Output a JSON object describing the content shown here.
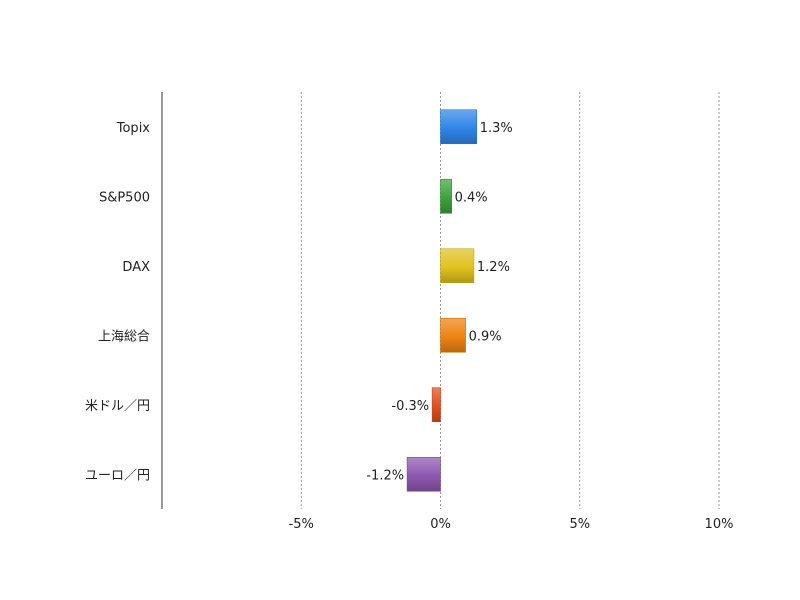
{
  "chart_data": {
    "type": "bar",
    "orientation": "horizontal",
    "categories": [
      "Topix",
      "S&P500",
      "DAX",
      "上海総合",
      "米ドル／円",
      "ユーロ／円"
    ],
    "values": [
      1.3,
      0.4,
      1.2,
      0.9,
      -0.3,
      -1.2
    ],
    "data_labels": [
      "1.3%",
      "0.4%",
      "1.2%",
      "0.9%",
      "-0.3%",
      "-1.2%"
    ],
    "colors": [
      "#2f86e8",
      "#3ea33a",
      "#e1c21f",
      "#ee8412",
      "#e24f1c",
      "#8e58b0"
    ],
    "xlim": [
      -10,
      10
    ],
    "x_ticks": [
      -5,
      0,
      5,
      10
    ],
    "x_tick_labels": [
      "-5%",
      "0%",
      "5%",
      "10%"
    ],
    "grid": "vertical dotted",
    "legend": "none",
    "title": "",
    "xlabel": "",
    "ylabel": ""
  }
}
